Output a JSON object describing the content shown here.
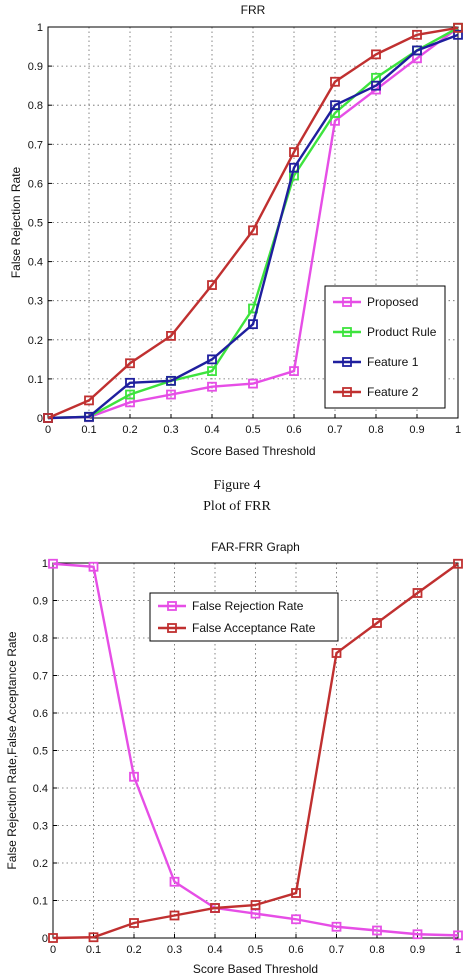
{
  "chart_data": [
    {
      "type": "line",
      "title": "FRR",
      "xlabel": "Score Based Threshold",
      "ylabel": "False Rejection Rate",
      "x": [
        0,
        0.1,
        0.2,
        0.3,
        0.4,
        0.5,
        0.6,
        0.7,
        0.8,
        0.9,
        1
      ],
      "x_ticks": [
        "0",
        "0.1",
        "0.2",
        "0.3",
        "0.4",
        "0.5",
        "0.6",
        "0.7",
        "0.8",
        "0.9",
        "1"
      ],
      "y_ticks": [
        "0",
        "0.1",
        "0.2",
        "0.3",
        "0.4",
        "0.5",
        "0.6",
        "0.7",
        "0.8",
        "0.9",
        "1"
      ],
      "xlim": [
        0,
        1
      ],
      "ylim": [
        0,
        1
      ],
      "grid": true,
      "legend_position": "bottom-right",
      "series": [
        {
          "name": "Proposed",
          "color": "#e64ee6",
          "values": [
            0,
            0.002,
            0.04,
            0.06,
            0.08,
            0.088,
            0.12,
            0.76,
            0.84,
            0.92,
            0.998
          ]
        },
        {
          "name": "Product Rule",
          "color": "#3de33d",
          "values": [
            0,
            0.003,
            0.06,
            0.095,
            0.12,
            0.28,
            0.62,
            0.78,
            0.87,
            0.94,
            0.998
          ]
        },
        {
          "name": "Feature 1",
          "color": "#1f1f9e",
          "values": [
            0,
            0.003,
            0.09,
            0.095,
            0.15,
            0.24,
            0.64,
            0.8,
            0.85,
            0.94,
            0.98
          ]
        },
        {
          "name": "Feature 2",
          "color": "#c03030",
          "values": [
            0,
            0.045,
            0.14,
            0.21,
            0.34,
            0.48,
            0.68,
            0.86,
            0.93,
            0.98,
            0.998
          ]
        }
      ]
    },
    {
      "type": "line",
      "title": "FAR-FRR Graph",
      "xlabel": "Score Based Threshold",
      "ylabel": "False Rejection Rate,False Acceptance Rate",
      "x": [
        0,
        0.1,
        0.2,
        0.3,
        0.4,
        0.5,
        0.6,
        0.7,
        0.8,
        0.9,
        1
      ],
      "x_ticks": [
        "0",
        "0.1",
        "0.2",
        "0.3",
        "0.4",
        "0.5",
        "0.6",
        "0.7",
        "0.8",
        "0.9",
        "1"
      ],
      "y_ticks": [
        "0",
        "0.1",
        "0.2",
        "0.3",
        "0.4",
        "0.5",
        "0.6",
        "0.7",
        "0.8",
        "0.9",
        "1"
      ],
      "xlim": [
        0,
        1
      ],
      "ylim": [
        0,
        1
      ],
      "grid": true,
      "legend_position": "top-center",
      "series": [
        {
          "name": "False Rejection Rate",
          "color": "#e64ee6",
          "values": [
            0.998,
            0.99,
            0.43,
            0.15,
            0.08,
            0.065,
            0.05,
            0.03,
            0.02,
            0.01,
            0.007
          ]
        },
        {
          "name": "False Acceptance Rate",
          "color": "#c03030",
          "values": [
            0,
            0.002,
            0.04,
            0.06,
            0.08,
            0.088,
            0.12,
            0.76,
            0.84,
            0.92,
            0.998
          ]
        }
      ]
    }
  ],
  "captions": {
    "figure_label": "Figure 4",
    "figure_title": "Plot of FRR"
  }
}
